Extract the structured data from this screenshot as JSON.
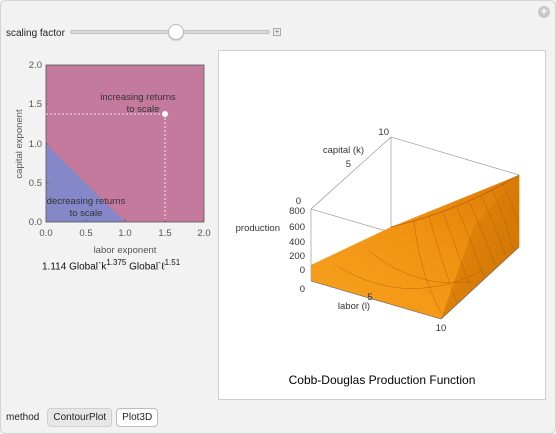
{
  "controls": {
    "scaling_factor_label": "scaling factor",
    "scaling_factor_value": 0.5
  },
  "contour_plot": {
    "xlabel": "labor exponent",
    "ylabel": "capital exponent",
    "x_ticks": [
      "0.0",
      "0.5",
      "1.0",
      "1.5",
      "2.0"
    ],
    "y_ticks": [
      "0.0",
      "0.5",
      "1.0",
      "1.5",
      "2.0"
    ],
    "increasing_label_line1": "increasing returns",
    "increasing_label_line2": "to scale",
    "decreasing_label_line1": "decreasing returns",
    "decreasing_label_line2": "to scale",
    "point_x": 1.51,
    "point_y": 1.375,
    "colors": {
      "increasing": "#c47a9c",
      "decreasing": "#8488c8"
    }
  },
  "formula": {
    "coef": "1.114",
    "k_term": "Global`k",
    "k_exp": "1.375",
    "l_term": "Global`ℓ",
    "l_exp": "1.51"
  },
  "plot3d": {
    "title": "Cobb-Douglas Production Function",
    "capital_label": "capital (k)",
    "production_label": "production",
    "labor_label": "labor (l)",
    "capital_ticks": [
      "10",
      "5",
      "0"
    ],
    "production_ticks": [
      "800",
      "600",
      "400",
      "200",
      "0"
    ],
    "labor_ticks": [
      "0",
      "5",
      "10"
    ]
  },
  "method": {
    "label": "method",
    "options": [
      "ContourPlot",
      "Plot3D"
    ],
    "selected": "Plot3D"
  }
}
